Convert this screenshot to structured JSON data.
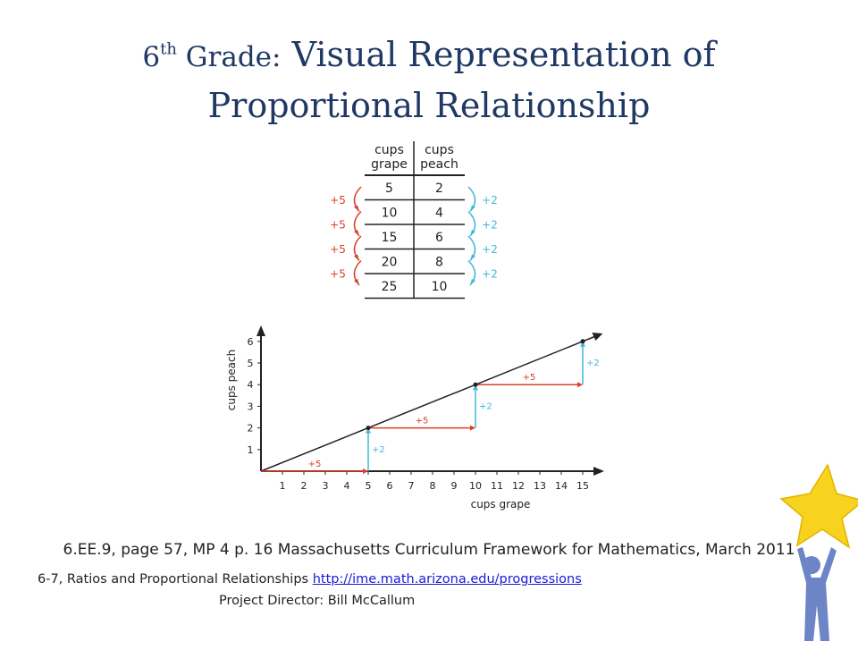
{
  "title": {
    "grade": "6",
    "sup": "th",
    "grade_word": " Grade:",
    "line1_rest": " Visual Representation of",
    "line2": "Proportional Relationship"
  },
  "table": {
    "col1_header": [
      "cups",
      "grape"
    ],
    "col2_header": [
      "cups",
      "peach"
    ],
    "rows": [
      [
        "5",
        "2"
      ],
      [
        "10",
        "4"
      ],
      [
        "15",
        "6"
      ],
      [
        "20",
        "8"
      ],
      [
        "25",
        "10"
      ]
    ],
    "left_step": "+5",
    "right_step": "+2",
    "colors": {
      "left_arrows": "#d9402b",
      "right_arrows": "#3fb8d8"
    }
  },
  "chart_data": {
    "type": "line",
    "xlabel": "cups grape",
    "ylabel": "cups peach",
    "x_ticks": [
      "1",
      "2",
      "3",
      "4",
      "5",
      "6",
      "7",
      "8",
      "9",
      "10",
      "11",
      "12",
      "13",
      "14",
      "15"
    ],
    "y_ticks": [
      "1",
      "2",
      "3",
      "4",
      "5",
      "6"
    ],
    "xlim": [
      0,
      15.6
    ],
    "ylim": [
      0,
      6.2
    ],
    "series": [
      {
        "x": [
          0,
          5,
          10,
          15
        ],
        "y": [
          0,
          2,
          4,
          6
        ]
      }
    ],
    "steps": [
      {
        "from_x": 0,
        "to_x": 5,
        "y": 0,
        "label": "+5"
      },
      {
        "x": 5,
        "from_y": 0,
        "to_y": 2,
        "label": "+2"
      },
      {
        "from_x": 5,
        "to_x": 10,
        "y": 2,
        "label": "+5"
      },
      {
        "x": 10,
        "from_y": 2,
        "to_y": 4,
        "label": "+2"
      },
      {
        "from_x": 10,
        "to_x": 15,
        "y": 4,
        "label": "+5"
      },
      {
        "x": 15,
        "from_y": 4,
        "to_y": 6,
        "label": "+2"
      }
    ],
    "colors": {
      "horizontal_steps": "#d9402b",
      "vertical_steps": "#3fb8d8",
      "line": "#222222"
    }
  },
  "citation": {
    "line1": "6.EE.9, page 57, MP 4 p. 16 Massachusetts Curriculum Framework for Mathematics, March 2011",
    "line2_prefix": "6-7, Ratios and Proportional Relationships ",
    "line2_link": "http://ime.math.arizona.edu/progressions",
    "line3": "Project Director: Bill McCallum"
  },
  "logo": {
    "star_color": "#f7d21e",
    "figure_color": "#6d85c6"
  }
}
